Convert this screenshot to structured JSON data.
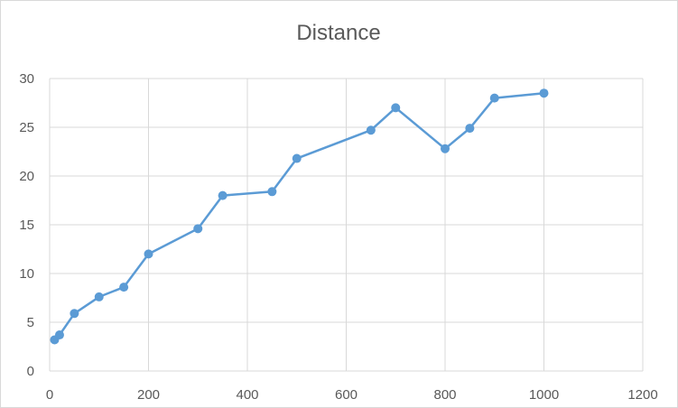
{
  "chart_data": {
    "type": "scatter",
    "title": "Distance",
    "xlabel": "",
    "ylabel": "",
    "xlim": [
      0,
      1200
    ],
    "ylim": [
      0,
      30
    ],
    "xticks": [
      0,
      200,
      400,
      600,
      800,
      1000,
      1200
    ],
    "yticks": [
      0,
      5,
      10,
      15,
      20,
      25,
      30
    ],
    "grid": true,
    "legend": "none",
    "color": "#5b9bd5",
    "series": [
      {
        "x": [
          10,
          20,
          50,
          100,
          150,
          200,
          300,
          350,
          450,
          500,
          650,
          700,
          800,
          850,
          900,
          1000
        ],
        "y": [
          3.2,
          3.7,
          5.9,
          7.6,
          8.6,
          12.0,
          14.6,
          18.0,
          18.4,
          21.8,
          24.7,
          27.0,
          22.8,
          24.9,
          28.0,
          28.5
        ]
      }
    ]
  }
}
